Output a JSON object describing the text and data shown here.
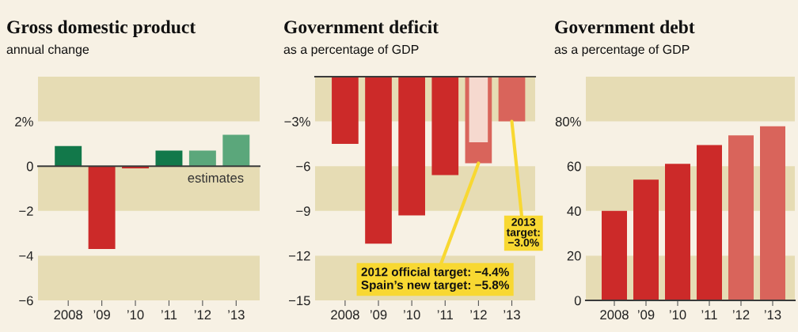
{
  "chart_data": [
    {
      "type": "bar",
      "title": "Gross domestic product",
      "subtitle": "annual change",
      "categories": [
        "2008",
        "’09",
        "’10",
        "’11",
        "’12",
        "’13"
      ],
      "values": [
        0.9,
        -3.7,
        -0.1,
        0.7,
        0.7,
        1.4
      ],
      "colors": [
        "#12784a",
        "#cc2a29",
        "#cc2a29",
        "#12784a",
        "#5ba77b",
        "#5ba77b"
      ],
      "ylim": [
        -6,
        4
      ],
      "yticks": [
        {
          "value": 2,
          "label": "2%"
        },
        0,
        {
          "value": -2,
          "label": "−2"
        },
        {
          "value": -4,
          "label": "−4"
        },
        {
          "value": -6,
          "label": "−6"
        }
      ],
      "bands": [
        {
          "axis": "y",
          "from": 2,
          "to": 4,
          "color": "#e6dcb4"
        },
        {
          "axis": "y",
          "from": -2,
          "to": 0,
          "color": "#e6dcb4"
        },
        {
          "axis": "y",
          "from": -6,
          "to": -4,
          "color": "#e6dcb4"
        }
      ],
      "ref_lines": [
        {
          "axis": "y",
          "value": 0,
          "color": "#3a3a3a"
        }
      ],
      "annotations": [
        {
          "text": "estimates",
          "x": "’12",
          "y": 0
        }
      ]
    },
    {
      "type": "bar",
      "title": "Government deficit",
      "subtitle": "as a percentage of GDP",
      "categories": [
        "2008",
        "’09",
        "’10",
        "’11",
        "’12",
        "’13"
      ],
      "series": [
        {
          "values": [
            -4.5,
            -11.2,
            -9.3,
            -6.6,
            -5.8,
            -3.0
          ],
          "colors": [
            "#cc2a29",
            "#cc2a29",
            "#cc2a29",
            "#cc2a29",
            "#d9645b",
            "#d9645b"
          ]
        },
        {
          "values": [
            null,
            null,
            null,
            null,
            -4.4,
            null
          ],
          "color": "#f6d9cf"
        }
      ],
      "ylim": [
        -15,
        0
      ],
      "yticks": [
        {
          "value": -3,
          "label": "−3%"
        },
        {
          "value": -6,
          "label": "−6"
        },
        {
          "value": -9,
          "label": "−9"
        },
        {
          "value": -12,
          "label": "−12"
        },
        {
          "value": -15,
          "label": "−15"
        }
      ],
      "bands": [
        {
          "axis": "y",
          "from": -3,
          "to": 0,
          "color": "#e6dcb4"
        },
        {
          "axis": "y",
          "from": -9,
          "to": -6,
          "color": "#e6dcb4"
        },
        {
          "axis": "y",
          "from": -15,
          "to": -12,
          "color": "#e6dcb4"
        }
      ],
      "ref_lines": [
        {
          "axis": "y",
          "value": 0,
          "color": "#3a3a3a"
        }
      ],
      "annotations": [
        {
          "text": "2013\ntarget:\n−3.0%",
          "x": "’13",
          "y": -3.0
        },
        {
          "text": "2012 official target: −4.4%\nSpain’s new target: −5.8%",
          "x": "’12",
          "y": -5.8
        }
      ]
    },
    {
      "type": "bar",
      "title": "Government debt",
      "subtitle": "as a percentage of GDP",
      "categories": [
        "2008",
        "’09",
        "’10",
        "’11",
        "’12",
        "’13"
      ],
      "values": [
        40,
        54,
        61,
        69.4,
        73.8,
        77.8
      ],
      "colors": [
        "#cc2a29",
        "#cc2a29",
        "#cc2a29",
        "#cc2a29",
        "#d9645b",
        "#d9645b"
      ],
      "ylim": [
        0,
        100
      ],
      "yticks": [
        0,
        20,
        40,
        60,
        {
          "value": 80,
          "label": "80%"
        }
      ],
      "bands": [
        {
          "axis": "y",
          "from": 80,
          "to": 100,
          "color": "#e6dcb4"
        },
        {
          "axis": "y",
          "from": 40,
          "to": 60,
          "color": "#e6dcb4"
        },
        {
          "axis": "y",
          "from": 0,
          "to": 20,
          "color": "#e6dcb4"
        }
      ]
    }
  ]
}
